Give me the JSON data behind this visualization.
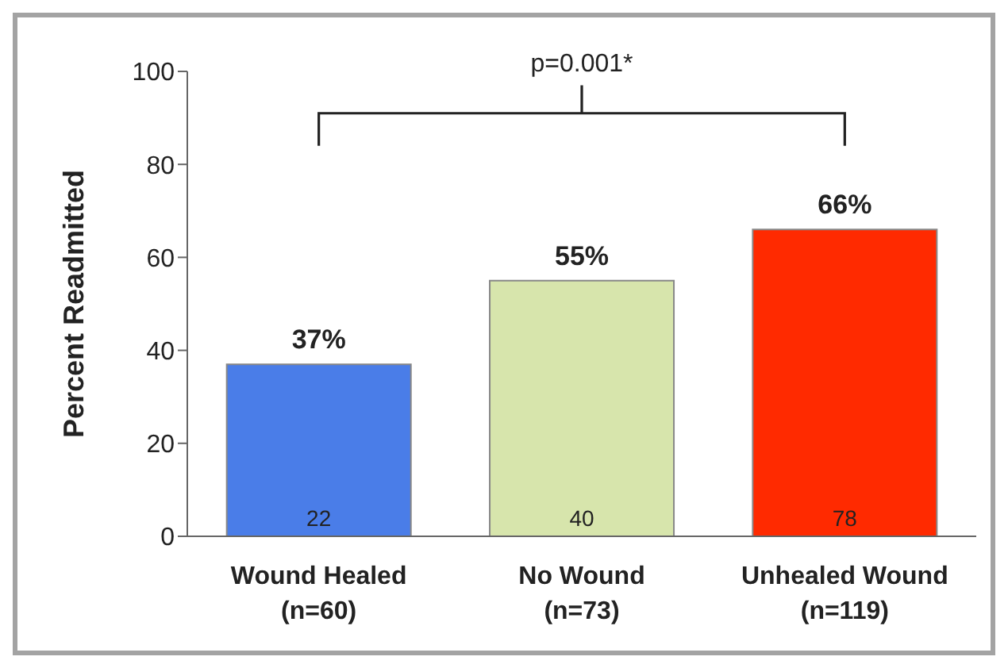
{
  "chart_data": {
    "type": "bar",
    "ylabel": "Percent Readmitted",
    "categories": [
      "Wound Healed\n(n=60)",
      "No Wound\n(n=73)",
      "Unhealed Wound\n(n=119)"
    ],
    "values": [
      37,
      55,
      66
    ],
    "colors": [
      "#4a7de8",
      "#d7e5ac",
      "#ff2a00"
    ],
    "value_labels": [
      "37%",
      "55%",
      "66%"
    ],
    "ylim": [
      0,
      100
    ],
    "yticks": [
      0,
      20,
      40,
      60,
      80,
      100
    ],
    "grid": false,
    "annotations": [
      "p=0.001*",
      "22",
      "40",
      "78"
    ]
  }
}
